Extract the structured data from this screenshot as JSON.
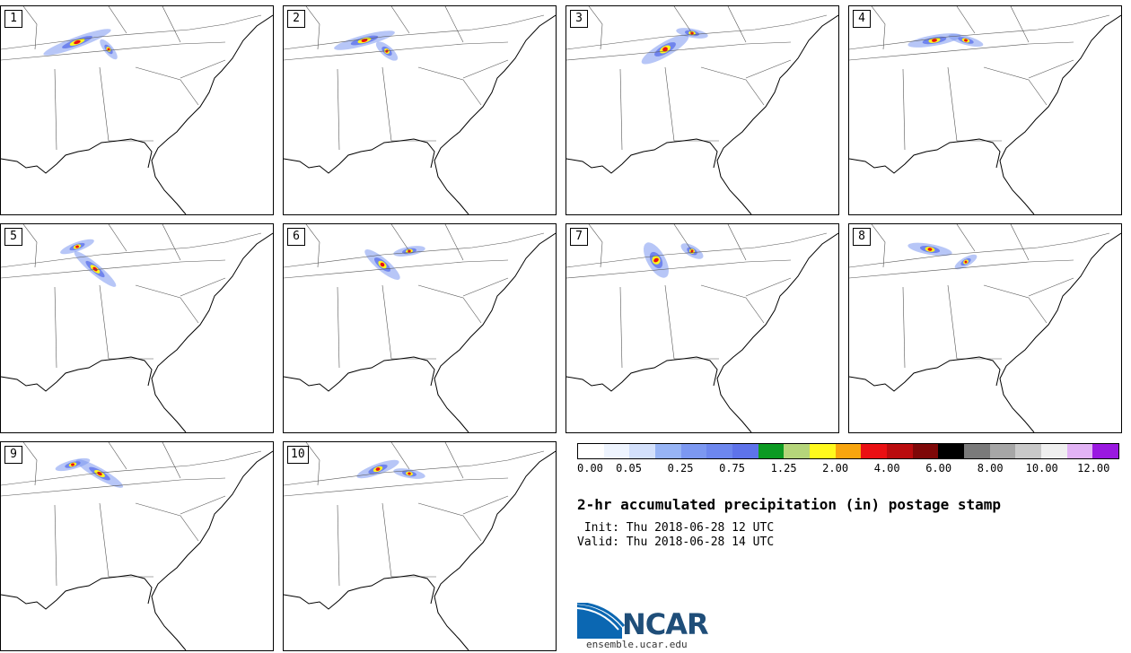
{
  "panels": [
    {
      "label": "1"
    },
    {
      "label": "2"
    },
    {
      "label": "3"
    },
    {
      "label": "4"
    },
    {
      "label": "5"
    },
    {
      "label": "6"
    },
    {
      "label": "7"
    },
    {
      "label": "8"
    },
    {
      "label": "9"
    },
    {
      "label": "10"
    }
  ],
  "colorbar": {
    "colors": [
      "#ffffff",
      "#eef4fe",
      "#d3e0fb",
      "#97b4f5",
      "#7c98f1",
      "#6d87ee",
      "#5e73ea",
      "#0c9a22",
      "#b5d57a",
      "#fff91d",
      "#f8a50e",
      "#ea1013",
      "#ba0c0e",
      "#7e0808",
      "#000000",
      "#7a7a7a",
      "#a6a6a6",
      "#c9c9c9",
      "#efefef",
      "#e2b3f5",
      "#9a19e0"
    ],
    "tick_labels": [
      "0.00",
      "0.05",
      "0.25",
      "0.75",
      "1.25",
      "2.00",
      "4.00",
      "6.00",
      "8.00",
      "10.00",
      "12.00"
    ]
  },
  "title": "2-hr accumulated precipitation (in) postage stamp",
  "init_line": " Init: Thu 2018-06-28 12 UTC",
  "valid_line": "Valid: Thu 2018-06-28 14 UTC",
  "logo": {
    "text": "NCAR",
    "url": "ensemble.ucar.edu"
  }
}
